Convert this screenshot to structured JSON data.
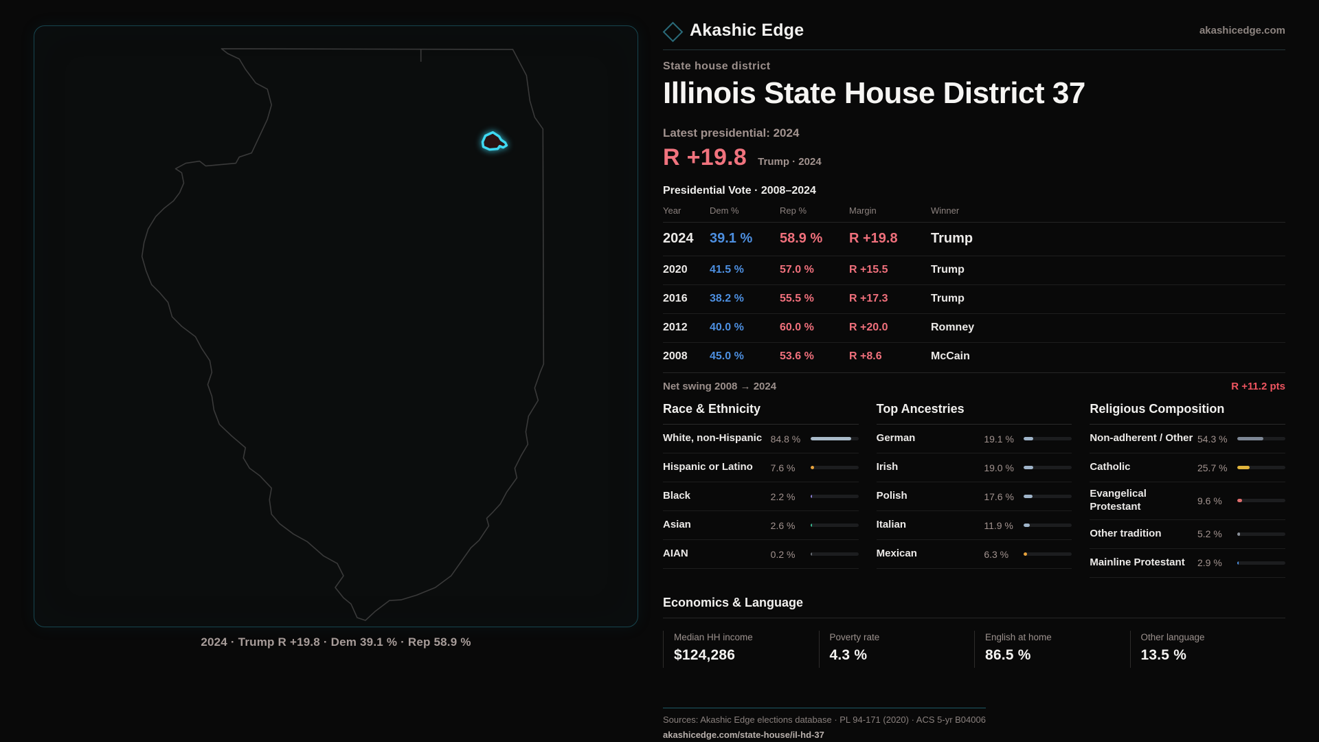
{
  "brand": {
    "name": "Akashic Edge",
    "site": "akashicedge.com"
  },
  "header": {
    "kicker": "State house district",
    "title": "Illinois State House District 37"
  },
  "latest": {
    "label": "Latest presidential: 2024",
    "margin": "R +19.8",
    "detail": "Trump · 2024"
  },
  "vote_table": {
    "title": "Presidential Vote · 2008–2024",
    "columns": {
      "year": "Year",
      "dem": "Dem %",
      "rep": "Rep %",
      "margin": "Margin",
      "winner": "Winner"
    },
    "rows": [
      {
        "year": "2024",
        "dem": "39.1 %",
        "rep": "58.9 %",
        "margin": "R +19.8",
        "winner": "Trump"
      },
      {
        "year": "2020",
        "dem": "41.5 %",
        "rep": "57.0 %",
        "margin": "R +15.5",
        "winner": "Trump"
      },
      {
        "year": "2016",
        "dem": "38.2 %",
        "rep": "55.5 %",
        "margin": "R +17.3",
        "winner": "Trump"
      },
      {
        "year": "2012",
        "dem": "40.0 %",
        "rep": "60.0 %",
        "margin": "R +20.0",
        "winner": "Romney"
      },
      {
        "year": "2008",
        "dem": "45.0 %",
        "rep": "53.6 %",
        "margin": "R +8.6",
        "winner": "McCain"
      }
    ]
  },
  "net_swing": {
    "label": "Net swing 2008 → 2024",
    "value": "R +11.2 pts"
  },
  "demographics": {
    "race": {
      "title": "Race & Ethnicity",
      "rows": [
        {
          "label": "White, non-Hispanic",
          "value": "84.8 %",
          "pct": 84.8,
          "color": "#a9bac9"
        },
        {
          "label": "Hispanic or Latino",
          "value": "7.6 %",
          "pct": 7.6,
          "color": "#e8a33c"
        },
        {
          "label": "Black",
          "value": "2.2 %",
          "pct": 2.2,
          "color": "#8b7fd6"
        },
        {
          "label": "Asian",
          "value": "2.6 %",
          "pct": 2.6,
          "color": "#3bbd94"
        },
        {
          "label": "AIAN",
          "value": "0.2 %",
          "pct": 0.2,
          "color": "#6a6f76"
        }
      ]
    },
    "ancestries": {
      "title": "Top Ancestries",
      "rows": [
        {
          "label": "German",
          "value": "19.1 %",
          "pct": 19.1,
          "color": "#9fb4c9"
        },
        {
          "label": "Irish",
          "value": "19.0 %",
          "pct": 19.0,
          "color": "#9fb4c9"
        },
        {
          "label": "Polish",
          "value": "17.6 %",
          "pct": 17.6,
          "color": "#9fb4c9"
        },
        {
          "label": "Italian",
          "value": "11.9 %",
          "pct": 11.9,
          "color": "#9fb4c9"
        },
        {
          "label": "Mexican",
          "value": "6.3 %",
          "pct": 6.3,
          "color": "#e8a33c"
        }
      ]
    },
    "religion": {
      "title": "Religious Composition",
      "rows": [
        {
          "label": "Non-adherent / Other",
          "value": "54.3 %",
          "pct": 54.3,
          "color": "#7d8795"
        },
        {
          "label": "Catholic",
          "value": "25.7 %",
          "pct": 25.7,
          "color": "#e0b43c"
        },
        {
          "label": "Evangelical Protestant",
          "value": "9.6 %",
          "pct": 9.6,
          "color": "#e06e6e"
        },
        {
          "label": "Other tradition",
          "value": "5.2 %",
          "pct": 5.2,
          "color": "#8a9099"
        },
        {
          "label": "Mainline Protestant",
          "value": "2.9 %",
          "pct": 2.9,
          "color": "#4d8fe0"
        }
      ]
    }
  },
  "economics": {
    "title": "Economics & Language",
    "stats": [
      {
        "label": "Median HH income",
        "value": "$124,286"
      },
      {
        "label": "Poverty rate",
        "value": "4.3 %"
      },
      {
        "label": "English at home",
        "value": "86.5 %"
      },
      {
        "label": "Other language",
        "value": "13.5 %"
      }
    ]
  },
  "footer": {
    "sources": "Sources: Akashic Edge elections database · PL 94-171 (2020) · ACS 5-yr B04006",
    "permalink": "akashicedge.com/state-house/il-hd-37"
  },
  "map": {
    "caption": "2024 · Trump R +19.8 · Dem 39.1 % · Rep 58.9 %"
  },
  "colors": {
    "dem_blue": "#4d8fe0",
    "rep_red": "#f0707c",
    "margin_red": "#f0737e",
    "swing_red": "#ee5560",
    "district_cyan": "#3fd9f2",
    "panel_border_teal": "#17454f"
  }
}
